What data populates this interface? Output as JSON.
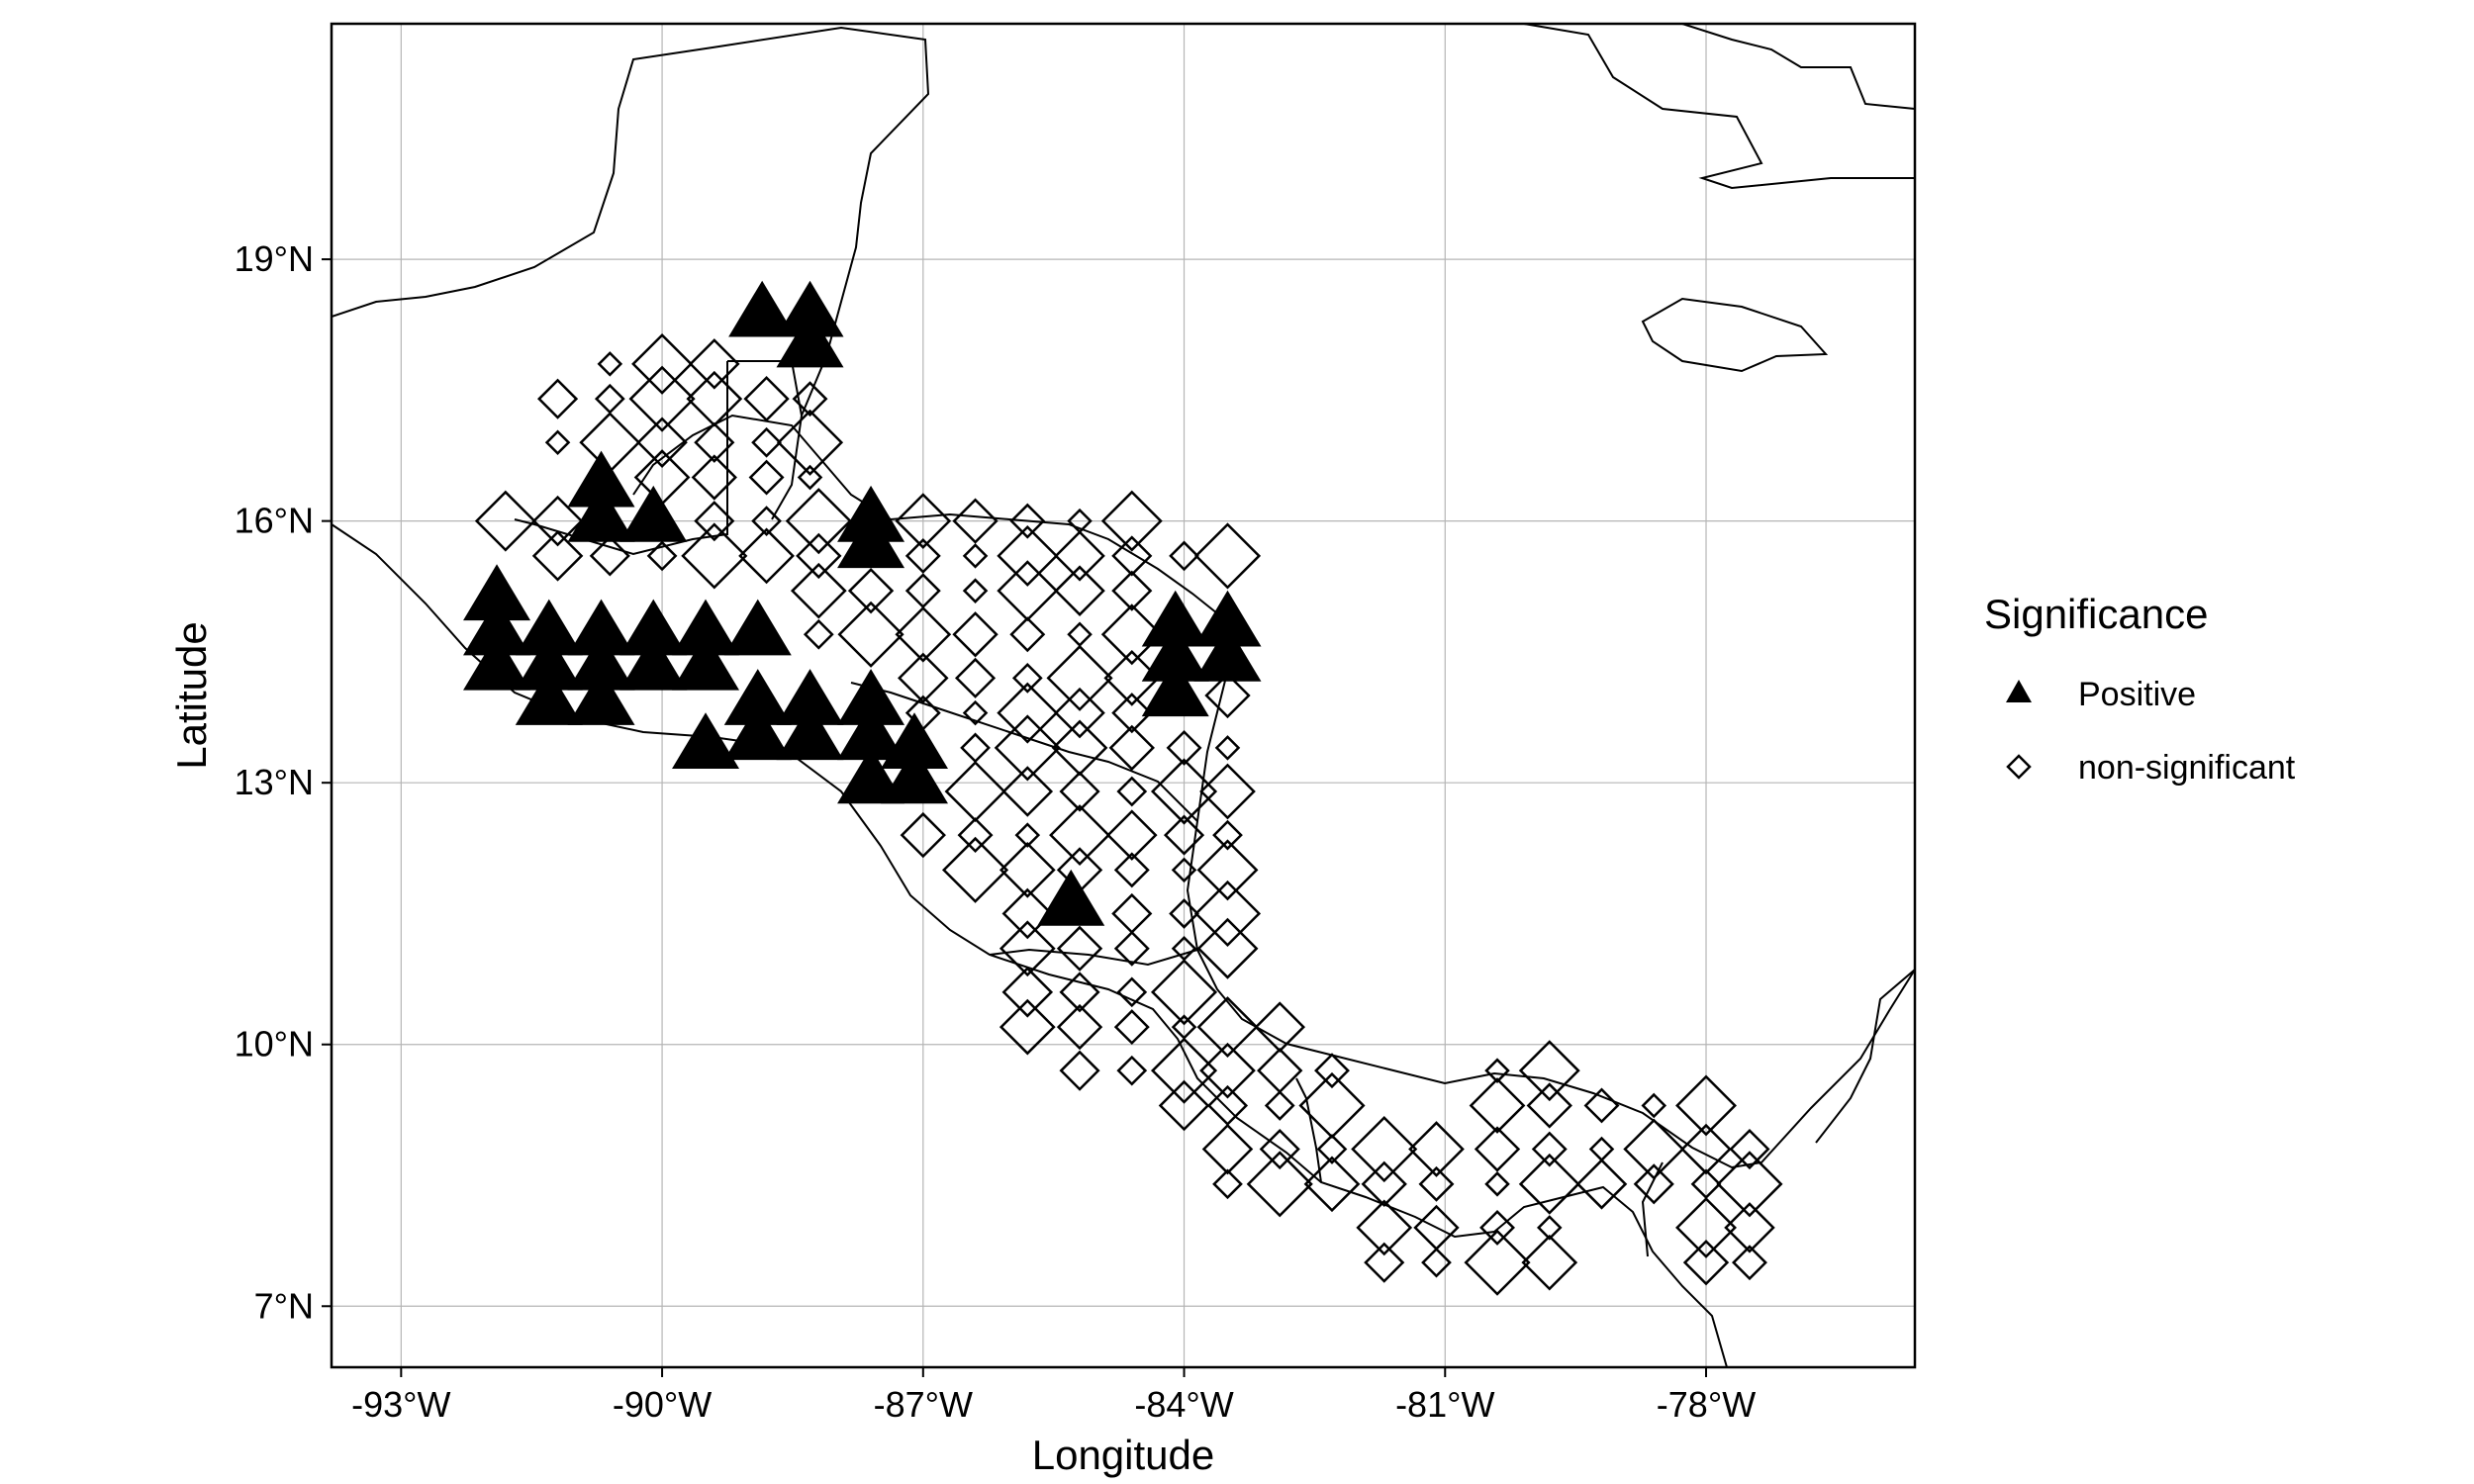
{
  "chart_data": {
    "type": "map",
    "xlabel": "Longitude",
    "ylabel": "Latitude",
    "xlim": [
      -93.8,
      -75.6
    ],
    "ylim": [
      6.3,
      21.7
    ],
    "x_ticks": [
      -93,
      -90,
      -87,
      -84,
      -81,
      -78
    ],
    "x_tick_labels": [
      "-93°W",
      "-90°W",
      "-87°W",
      "-84°W",
      "-81°W",
      "-78°W"
    ],
    "y_ticks": [
      7,
      10,
      13,
      16,
      19
    ],
    "y_tick_labels": [
      "7°N",
      "10°N",
      "13°N",
      "16°N",
      "19°N"
    ],
    "grid": true,
    "legend": {
      "title": "Significance",
      "position": "right",
      "entries": [
        {
          "label": "Positive",
          "marker": "filled-triangle"
        },
        {
          "label": "non-significant",
          "marker": "open-diamond"
        }
      ]
    },
    "colors": {
      "positive": "#000000",
      "non_significant": "#000000",
      "coastline": "#000000",
      "grid": "#b5b5b5"
    },
    "series": [
      {
        "name": "Positive",
        "marker": "filled-triangle",
        "points": [
          [
            -88.85,
            18.35
          ],
          [
            -88.3,
            18.35
          ],
          [
            -88.3,
            18.0
          ],
          [
            -90.7,
            16.4
          ],
          [
            -90.7,
            16.0
          ],
          [
            -90.1,
            16.0
          ],
          [
            -87.6,
            16.0
          ],
          [
            -87.6,
            15.7
          ],
          [
            -91.9,
            15.1
          ],
          [
            -91.9,
            14.7
          ],
          [
            -91.9,
            14.3
          ],
          [
            -91.3,
            14.7
          ],
          [
            -91.3,
            14.3
          ],
          [
            -91.3,
            13.9
          ],
          [
            -90.7,
            14.7
          ],
          [
            -90.7,
            14.3
          ],
          [
            -90.7,
            13.9
          ],
          [
            -90.1,
            14.7
          ],
          [
            -90.1,
            14.3
          ],
          [
            -89.5,
            14.7
          ],
          [
            -89.5,
            14.3
          ],
          [
            -88.9,
            14.7
          ],
          [
            -88.9,
            13.9
          ],
          [
            -88.9,
            13.5
          ],
          [
            -88.3,
            13.9
          ],
          [
            -88.3,
            13.5
          ],
          [
            -87.6,
            13.9
          ],
          [
            -87.6,
            13.5
          ],
          [
            -87.6,
            13.0
          ],
          [
            -87.1,
            13.4
          ],
          [
            -87.1,
            13.0
          ],
          [
            -89.5,
            13.4
          ],
          [
            -85.3,
            11.6
          ],
          [
            -84.1,
            14.8
          ],
          [
            -84.1,
            14.4
          ],
          [
            -84.1,
            14.0
          ],
          [
            -83.5,
            14.8
          ],
          [
            -83.5,
            14.4
          ]
        ]
      },
      {
        "name": "non-significant",
        "marker": "open-diamond",
        "points": [
          [
            -90.6,
            17.8
          ],
          [
            -90.0,
            17.8
          ],
          [
            -89.4,
            17.8
          ],
          [
            -91.2,
            17.4
          ],
          [
            -90.6,
            17.4
          ],
          [
            -90.0,
            17.4
          ],
          [
            -89.4,
            17.4
          ],
          [
            -88.8,
            17.4
          ],
          [
            -88.3,
            17.4
          ],
          [
            -91.2,
            16.9
          ],
          [
            -90.6,
            16.9
          ],
          [
            -90.0,
            16.9
          ],
          [
            -89.4,
            16.9
          ],
          [
            -88.8,
            16.9
          ],
          [
            -88.3,
            16.9
          ],
          [
            -90.0,
            16.5
          ],
          [
            -89.4,
            16.5
          ],
          [
            -88.8,
            16.5
          ],
          [
            -88.3,
            16.5
          ],
          [
            -91.8,
            16.0
          ],
          [
            -91.2,
            16.0
          ],
          [
            -89.4,
            16.0
          ],
          [
            -88.8,
            16.0
          ],
          [
            -88.2,
            16.0
          ],
          [
            -87.0,
            16.0
          ],
          [
            -86.4,
            16.0
          ],
          [
            -85.8,
            16.0
          ],
          [
            -85.2,
            16.0
          ],
          [
            -84.6,
            16.0
          ],
          [
            -91.2,
            15.6
          ],
          [
            -90.6,
            15.6
          ],
          [
            -90.0,
            15.6
          ],
          [
            -89.4,
            15.6
          ],
          [
            -88.8,
            15.6
          ],
          [
            -88.2,
            15.6
          ],
          [
            -87.0,
            15.6
          ],
          [
            -86.4,
            15.6
          ],
          [
            -85.8,
            15.6
          ],
          [
            -85.2,
            15.6
          ],
          [
            -84.6,
            15.6
          ],
          [
            -84.0,
            15.6
          ],
          [
            -83.5,
            15.6
          ],
          [
            -88.2,
            15.2
          ],
          [
            -87.6,
            15.2
          ],
          [
            -87.0,
            15.2
          ],
          [
            -86.4,
            15.2
          ],
          [
            -85.8,
            15.2
          ],
          [
            -85.2,
            15.2
          ],
          [
            -84.6,
            15.2
          ],
          [
            -88.2,
            14.7
          ],
          [
            -87.6,
            14.7
          ],
          [
            -87.0,
            14.7
          ],
          [
            -86.4,
            14.7
          ],
          [
            -85.8,
            14.7
          ],
          [
            -85.2,
            14.7
          ],
          [
            -84.6,
            14.7
          ],
          [
            -87.0,
            14.2
          ],
          [
            -86.4,
            14.2
          ],
          [
            -85.8,
            14.2
          ],
          [
            -85.2,
            14.2
          ],
          [
            -84.6,
            14.2
          ],
          [
            -83.5,
            14.0
          ],
          [
            -87.0,
            13.8
          ],
          [
            -86.4,
            13.8
          ],
          [
            -85.8,
            13.8
          ],
          [
            -85.2,
            13.8
          ],
          [
            -84.6,
            13.8
          ],
          [
            -86.4,
            13.4
          ],
          [
            -85.8,
            13.4
          ],
          [
            -85.2,
            13.4
          ],
          [
            -84.6,
            13.4
          ],
          [
            -84.0,
            13.4
          ],
          [
            -83.5,
            13.4
          ],
          [
            -86.4,
            12.9
          ],
          [
            -85.8,
            12.9
          ],
          [
            -85.2,
            12.9
          ],
          [
            -84.6,
            12.9
          ],
          [
            -84.0,
            12.9
          ],
          [
            -83.5,
            12.9
          ],
          [
            -87.0,
            12.4
          ],
          [
            -86.4,
            12.4
          ],
          [
            -85.8,
            12.4
          ],
          [
            -85.2,
            12.4
          ],
          [
            -84.6,
            12.4
          ],
          [
            -84.0,
            12.4
          ],
          [
            -83.5,
            12.4
          ],
          [
            -86.4,
            12.0
          ],
          [
            -85.8,
            12.0
          ],
          [
            -85.2,
            12.0
          ],
          [
            -84.6,
            12.0
          ],
          [
            -84.0,
            12.0
          ],
          [
            -83.5,
            12.0
          ],
          [
            -85.8,
            11.5
          ],
          [
            -84.6,
            11.5
          ],
          [
            -84.0,
            11.5
          ],
          [
            -83.5,
            11.5
          ],
          [
            -85.8,
            11.1
          ],
          [
            -85.2,
            11.1
          ],
          [
            -84.6,
            11.1
          ],
          [
            -84.0,
            11.1
          ],
          [
            -83.5,
            11.1
          ],
          [
            -85.8,
            10.6
          ],
          [
            -85.2,
            10.6
          ],
          [
            -84.6,
            10.6
          ],
          [
            -84.0,
            10.6
          ],
          [
            -85.8,
            10.2
          ],
          [
            -85.2,
            10.2
          ],
          [
            -84.6,
            10.2
          ],
          [
            -84.0,
            10.2
          ],
          [
            -83.5,
            10.2
          ],
          [
            -82.9,
            10.2
          ],
          [
            -85.2,
            9.7
          ],
          [
            -84.6,
            9.7
          ],
          [
            -84.0,
            9.7
          ],
          [
            -83.5,
            9.7
          ],
          [
            -82.9,
            9.7
          ],
          [
            -82.3,
            9.7
          ],
          [
            -80.4,
            9.7
          ],
          [
            -79.8,
            9.7
          ],
          [
            -84.0,
            9.3
          ],
          [
            -83.5,
            9.3
          ],
          [
            -82.9,
            9.3
          ],
          [
            -82.3,
            9.3
          ],
          [
            -80.4,
            9.3
          ],
          [
            -79.8,
            9.3
          ],
          [
            -79.2,
            9.3
          ],
          [
            -78.6,
            9.3
          ],
          [
            -78.0,
            9.3
          ],
          [
            -83.5,
            8.8
          ],
          [
            -82.9,
            8.8
          ],
          [
            -82.3,
            8.8
          ],
          [
            -81.7,
            8.8
          ],
          [
            -81.1,
            8.8
          ],
          [
            -80.4,
            8.8
          ],
          [
            -79.8,
            8.8
          ],
          [
            -79.2,
            8.8
          ],
          [
            -78.6,
            8.8
          ],
          [
            -78.0,
            8.8
          ],
          [
            -77.5,
            8.8
          ],
          [
            -83.5,
            8.4
          ],
          [
            -82.9,
            8.4
          ],
          [
            -82.3,
            8.4
          ],
          [
            -81.7,
            8.4
          ],
          [
            -81.1,
            8.4
          ],
          [
            -80.4,
            8.4
          ],
          [
            -79.8,
            8.4
          ],
          [
            -79.2,
            8.4
          ],
          [
            -78.6,
            8.4
          ],
          [
            -78.0,
            8.4
          ],
          [
            -77.5,
            8.4
          ],
          [
            -81.7,
            7.9
          ],
          [
            -81.1,
            7.9
          ],
          [
            -80.4,
            7.9
          ],
          [
            -79.8,
            7.9
          ],
          [
            -78.0,
            7.9
          ],
          [
            -77.5,
            7.9
          ],
          [
            -81.7,
            7.5
          ],
          [
            -81.1,
            7.5
          ],
          [
            -80.4,
            7.5
          ],
          [
            -79.8,
            7.5
          ],
          [
            -78.0,
            7.5
          ],
          [
            -77.5,
            7.5
          ]
        ]
      }
    ]
  }
}
